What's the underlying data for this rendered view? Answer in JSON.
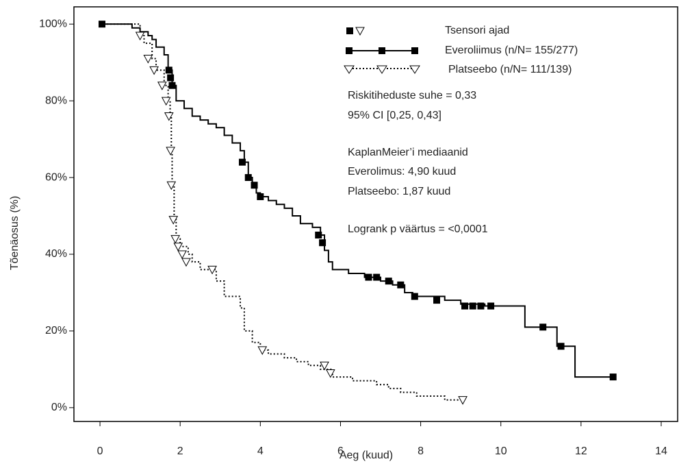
{
  "chart_data": {
    "type": "kaplan-meier",
    "x_label": "Aeg (kuud)",
    "y_label": "Tõenäosus  (%)",
    "xlim": [
      -0.65,
      14.41
    ],
    "ylim": [
      -3.6,
      104.5
    ],
    "xticks": [
      0,
      2,
      4,
      6,
      8,
      10,
      12,
      14
    ],
    "yticks": [
      {
        "value": 0,
        "label": "0%"
      },
      {
        "value": 20,
        "label": "20%"
      },
      {
        "value": 40,
        "label": "40%"
      },
      {
        "value": 60,
        "label": "60%"
      },
      {
        "value": 80,
        "label": "80%"
      },
      {
        "value": 100,
        "label": "100%"
      }
    ],
    "censor_legend": "Tsensori ajad",
    "series": [
      {
        "name": "Everoliimus (n/N= 155/277)",
        "color": "#000000",
        "line": "solid",
        "marker": "square",
        "x": [
          0,
          0.8,
          1.0,
          1.2,
          1.3,
          1.4,
          1.6,
          1.7,
          1.8,
          1.9,
          2.1,
          2.3,
          2.5,
          2.7,
          2.9,
          3.1,
          3.3,
          3.5,
          3.6,
          3.7,
          3.8,
          3.9,
          4.0,
          4.2,
          4.4,
          4.6,
          4.8,
          5.0,
          5.3,
          5.5,
          5.6,
          5.7,
          5.8,
          6.2,
          6.6,
          7.0,
          7.3,
          7.6,
          7.8,
          8.6,
          9.0,
          9.6,
          10.6,
          11.4,
          11.85,
          12.8
        ],
        "values": [
          100,
          99,
          98,
          97,
          96,
          94,
          92,
          88,
          84,
          80,
          78,
          76,
          75,
          74,
          73,
          71,
          69,
          67,
          64,
          60,
          58,
          56,
          55,
          54,
          53,
          52,
          50,
          48,
          47,
          45,
          41,
          38,
          36,
          35,
          34,
          33,
          32,
          30,
          29,
          28,
          27,
          26.5,
          21,
          16,
          8,
          8
        ],
        "censor_x": [
          0.05,
          1.72,
          1.76,
          1.8,
          3.55,
          3.7,
          3.85,
          4.0,
          5.45,
          5.55,
          6.7,
          6.9,
          7.2,
          7.5,
          7.85,
          8.4,
          9.1,
          9.3,
          9.5,
          9.75,
          11.05,
          11.5,
          12.8
        ],
        "censor_values": [
          100,
          88,
          86,
          84,
          64,
          60,
          58,
          55,
          45,
          43,
          34,
          34,
          33,
          32,
          29,
          28,
          26.5,
          26.5,
          26.5,
          26.5,
          21,
          16,
          8
        ]
      },
      {
        "name": "Platseebo (n/N= 111/139)",
        "color": "#000000",
        "line": "dotted",
        "marker": "triangle",
        "x": [
          0,
          0.9,
          1.0,
          1.1,
          1.3,
          1.4,
          1.6,
          1.7,
          1.75,
          1.78,
          1.8,
          1.85,
          1.9,
          2.0,
          2.2,
          2.3,
          2.5,
          2.9,
          3.1,
          3.5,
          3.6,
          3.8,
          4.0,
          4.2,
          4.6,
          4.9,
          5.2,
          5.5,
          5.8,
          6.3,
          6.9,
          7.2,
          7.5,
          7.9,
          8.6,
          9.05
        ],
        "values": [
          100,
          100,
          97,
          95,
          91,
          88,
          84,
          80,
          76,
          68,
          58,
          49,
          44,
          42,
          40,
          38,
          36,
          33,
          29,
          26,
          20,
          17,
          15,
          14,
          13,
          12,
          11,
          10,
          8,
          7,
          6,
          5,
          4,
          3,
          2,
          2
        ],
        "censor_x": [
          1.0,
          1.2,
          1.35,
          1.55,
          1.65,
          1.72,
          1.76,
          1.78,
          1.83,
          1.88,
          1.95,
          2.05,
          2.15,
          2.8,
          4.05,
          5.6,
          5.75,
          9.05
        ],
        "censor_values": [
          97,
          91,
          88,
          84,
          80,
          76,
          67,
          58,
          49,
          44,
          42,
          40,
          38,
          36,
          15,
          11,
          9,
          2
        ]
      }
    ],
    "annotations": [
      "Riskitiheduste suhe = 0,33",
      "95% CI [0,25, 0,43]",
      "KaplanMeier’i mediaanid",
      "Everolimus: 4,90 kuud",
      "Platseebo: 1,87 kuud",
      "Logrank p väärtus = <0,0001"
    ]
  }
}
